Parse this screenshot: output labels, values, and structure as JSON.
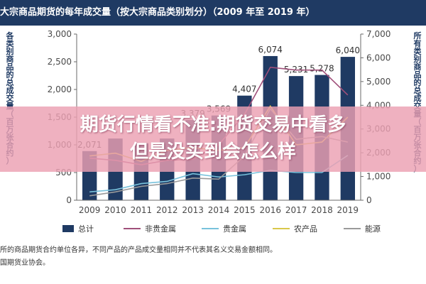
{
  "title": "大宗商品期货的每年成交量（按大宗商品类别划分）（2009 年至 2019 年）",
  "banner": {
    "line1": "期货行情看不准:期货交易中看多",
    "line2": "但是没买到会怎么样"
  },
  "notes": [
    "所的商品期货合约单位各异，不同产品的产品成交量相同并不代表其名义交易金额相同。",
    "国期货业协会。"
  ],
  "chart_data": {
    "type": "bar",
    "title": "大宗商品期货的每年成交量（按大宗商品类别划分）（2009 年至 2019 年）",
    "categories": [
      "2009",
      "2010",
      "2011",
      "2012",
      "2013",
      "2014",
      "2015",
      "2016",
      "2017",
      "2018",
      "2019"
    ],
    "y_left": {
      "label": "各类别商品的总成交量（百万张合约）",
      "range": [
        0,
        3000
      ],
      "ticks": [
        "0",
        "500",
        "1,000",
        "1,500",
        "2,000",
        "2,500",
        "3,000"
      ]
    },
    "y_right": {
      "label": "所有类别商品的总成交量（百万张合约）",
      "range": [
        0,
        7000
      ],
      "ticks": [
        "0",
        "1,000",
        "2,000",
        "3,000",
        "4,000",
        "5,000",
        "6,000",
        "7,000"
      ]
    },
    "series": [
      {
        "name": "总计",
        "kind": "bar",
        "axis": "right",
        "color": "#1f3a63",
        "values": [
          2071,
          2600,
          2400,
          2600,
          3379,
          3569,
          4407,
          6074,
          5231,
          5278,
          6040
        ],
        "labels": [
          "2,071",
          "",
          "",
          "",
          "3,379",
          "3,569",
          "4,407",
          "6,074",
          "5,231",
          "5,278",
          "6,040"
        ]
      },
      {
        "name": "非贵金属",
        "kind": "line",
        "axis": "left",
        "color": "#a0507a",
        "values": [
          760,
          720,
          640,
          720,
          740,
          1000,
          1550,
          2400,
          2350,
          2350,
          1900
        ]
      },
      {
        "name": "贵金属",
        "kind": "line",
        "axis": "left",
        "color": "#78c2dc",
        "values": [
          150,
          190,
          300,
          340,
          480,
          420,
          460,
          540,
          500,
          500,
          810
        ]
      },
      {
        "name": "农产品",
        "kind": "line",
        "axis": "left",
        "color": "#d9c84a",
        "values": [
          800,
          850,
          700,
          900,
          950,
          900,
          950,
          1700,
          1000,
          1050,
          1500
        ]
      },
      {
        "name": "能源",
        "kind": "line",
        "axis": "left",
        "color": "#9a9a9a",
        "values": [
          80,
          150,
          250,
          300,
          400,
          380,
          800,
          1650,
          1100,
          1150,
          1050
        ]
      }
    ],
    "legend": "bottom",
    "grid": false
  }
}
